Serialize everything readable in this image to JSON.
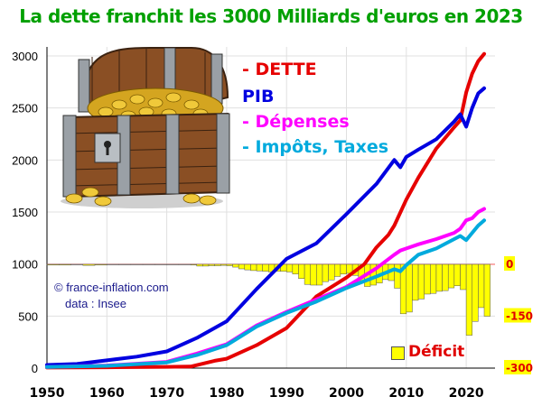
{
  "chart_data": {
    "type": "line",
    "title": "La dette franchit les 3000 Milliards d'euros en 2023",
    "xlim": [
      1950,
      2023
    ],
    "ylim": [
      0,
      3000
    ],
    "x_ticks": [
      1950,
      1960,
      1970,
      1980,
      1990,
      2000,
      2010,
      2020
    ],
    "y_ticks": [
      0,
      500,
      1000,
      1500,
      2000,
      2500,
      3000
    ],
    "y2_ticks": [
      0,
      -150,
      -300
    ],
    "series": [
      {
        "name": "- DETTE",
        "color": "#e60000",
        "x": [
          1950,
          1960,
          1970,
          1974,
          1978,
          1980,
          1985,
          1990,
          1995,
          2000,
          2003,
          2005,
          2007,
          2008,
          2010,
          2012,
          2015,
          2018,
          2019,
          2020,
          2021,
          2022,
          2023
        ],
        "y": [
          5,
          8,
          12,
          15,
          70,
          90,
          220,
          385,
          690,
          870,
          1000,
          1160,
          1280,
          1370,
          1620,
          1830,
          2110,
          2315,
          2380,
          2650,
          2830,
          2950,
          3020
        ]
      },
      {
        "name": "PIB",
        "color": "#0000e0",
        "x": [
          1950,
          1955,
          1960,
          1965,
          1970,
          1975,
          1980,
          1985,
          1990,
          1995,
          2000,
          2005,
          2008,
          2009,
          2010,
          2012,
          2015,
          2018,
          2019,
          2020,
          2021,
          2022,
          2023
        ],
        "y": [
          30,
          40,
          75,
          110,
          160,
          290,
          450,
          760,
          1050,
          1200,
          1480,
          1770,
          2000,
          1930,
          2030,
          2100,
          2200,
          2370,
          2440,
          2320,
          2500,
          2640,
          2690
        ]
      },
      {
        "name": "Dépenses",
        "color": "#ff00ff",
        "x": [
          1950,
          1960,
          1970,
          1975,
          1980,
          1985,
          1990,
          1995,
          2000,
          2005,
          2008,
          2009,
          2010,
          2012,
          2015,
          2018,
          2019,
          2020,
          2021,
          2022,
          2023
        ],
        "y": [
          10,
          25,
          60,
          140,
          230,
          410,
          540,
          660,
          780,
          960,
          1090,
          1130,
          1150,
          1190,
          1240,
          1300,
          1340,
          1420,
          1440,
          1500,
          1530
        ]
      },
      {
        "name": "Impôts, Taxes",
        "color": "#00aadd",
        "x": [
          1950,
          1960,
          1970,
          1975,
          1980,
          1985,
          1990,
          1995,
          2000,
          2005,
          2008,
          2009,
          2010,
          2012,
          2015,
          2018,
          2019,
          2020,
          2021,
          2022,
          2023
        ],
        "y": [
          10,
          22,
          55,
          125,
          220,
          400,
          530,
          640,
          770,
          880,
          950,
          930,
          990,
          1090,
          1150,
          1240,
          1270,
          1230,
          1300,
          1370,
          1420
        ]
      }
    ],
    "deficit": {
      "name": "Déficit",
      "color": "#ffff00",
      "x": [
        1950,
        1952,
        1954,
        1956,
        1958,
        1960,
        1962,
        1964,
        1966,
        1968,
        1970,
        1972,
        1974,
        1975,
        1976,
        1977,
        1978,
        1979,
        1980,
        1981,
        1982,
        1983,
        1984,
        1985,
        1986,
        1987,
        1988,
        1989,
        1990,
        1991,
        1992,
        1993,
        1994,
        1995,
        1996,
        1997,
        1998,
        1999,
        2000,
        2001,
        2002,
        2003,
        2004,
        2005,
        2006,
        2007,
        2008,
        2009,
        2010,
        2011,
        2012,
        2013,
        2014,
        2015,
        2016,
        2017,
        2018,
        2019,
        2020,
        2021,
        2022,
        2023
      ],
      "y": [
        -2,
        -2,
        -1,
        -3,
        -2,
        -1,
        -1,
        -1,
        -1,
        -1,
        -1,
        -1,
        -2,
        -5,
        -5,
        -4,
        -4,
        -3,
        -4,
        -8,
        -13,
        -16,
        -18,
        -19,
        -20,
        -22,
        -20,
        -20,
        -22,
        -28,
        -41,
        -58,
        -60,
        -60,
        -50,
        -45,
        -35,
        -28,
        -26,
        -32,
        -47,
        -64,
        -60,
        -54,
        -44,
        -47,
        -69,
        -143,
        -138,
        -104,
        -100,
        -86,
        -84,
        -78,
        -76,
        -68,
        -62,
        -73,
        -205,
        -165,
        -125,
        -150
      ]
    }
  },
  "legend": [
    "- DETTE",
    "PIB",
    "- Dépenses",
    "- Impôts, Taxes"
  ],
  "credit": {
    "line1": "© france-inflation.com",
    "line2": "data : Insee"
  },
  "deficit_label": "Déficit",
  "icons": {
    "treasure": "treasure-chest-icon"
  }
}
